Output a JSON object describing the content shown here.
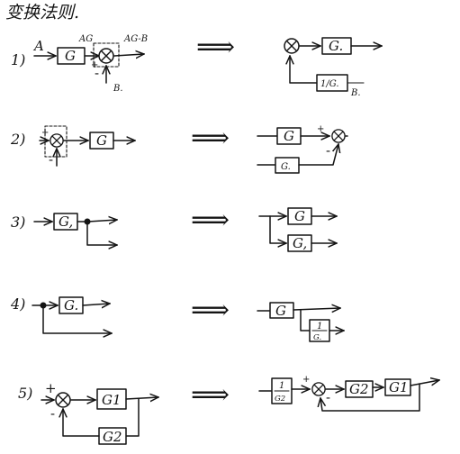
{
  "title": "变换法则.",
  "rules": [
    {
      "number": "1)",
      "left": {
        "input": "A",
        "block": "G",
        "sum_plus": "+",
        "sum_minus": "-",
        "mid_label": "AG",
        "out_label": "AG-B",
        "disturbance": "B."
      },
      "right": {
        "block": "G.",
        "feedback_block": "1/G.",
        "disturbance": "B."
      }
    },
    {
      "number": "2)",
      "left": {
        "block": "G",
        "sum_plus": "+",
        "sum_minus": "-"
      },
      "right": {
        "block_top": "G",
        "block_bottom": "G.",
        "sum_plus": "+",
        "sum_minus": "-"
      }
    },
    {
      "number": "3)",
      "left": {
        "block": "G,"
      },
      "right": {
        "block_top": "G",
        "block_bottom": "G,"
      }
    },
    {
      "number": "4)",
      "left": {
        "block": "G."
      },
      "right": {
        "block": "G",
        "feedback_num": "1",
        "feedback_den": "G."
      }
    },
    {
      "number": "5)",
      "left": {
        "block_forward": "G1",
        "block_feedback": "G2",
        "sum_plus": "+",
        "sum_minus": "-"
      },
      "right": {
        "pre_num": "1",
        "pre_den": "G2",
        "block_mid": "G2",
        "block_out": "G1",
        "sum_plus": "+",
        "sum_minus": "-"
      }
    }
  ],
  "implies_symbol": "⟹"
}
